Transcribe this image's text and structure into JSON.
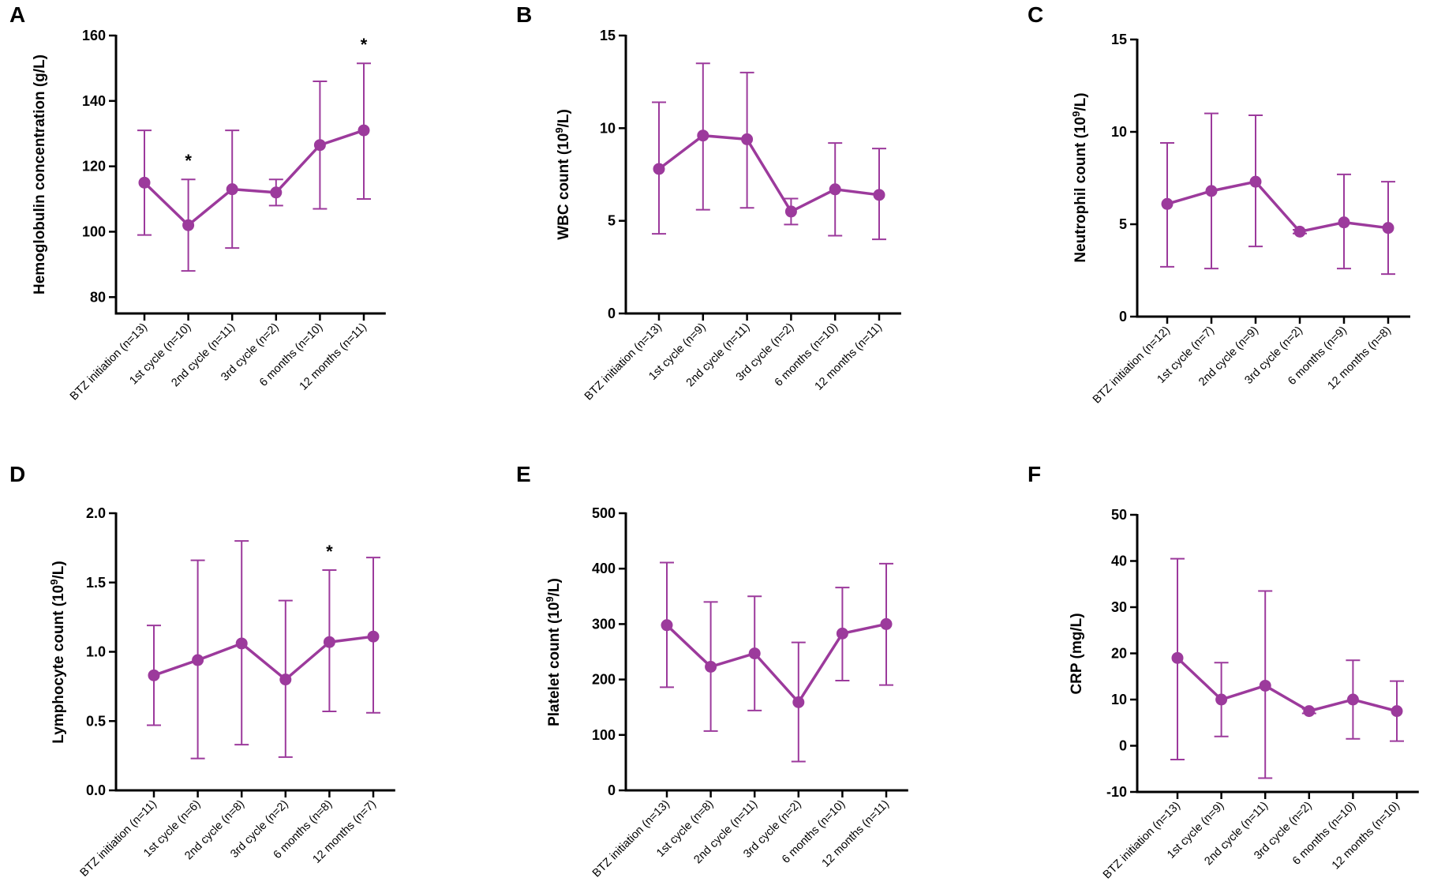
{
  "colors": {
    "series": "#9c3a9c",
    "axis": "#000000"
  },
  "chart_data": [
    {
      "panel": "A",
      "type": "line",
      "ylabel": "Hemoglobulin concentration (g/L)",
      "ylim": [
        75,
        160
      ],
      "yticks": [
        80,
        100,
        120,
        140,
        160
      ],
      "categories": [
        "BTZ initiation (n=13)",
        "1st cycle (n=10)",
        "2nd cycle (n=11)",
        "3rd cycle (n=2)",
        "6 months (n=10)",
        "12 months (n=11)"
      ],
      "values": [
        115,
        102,
        113,
        112,
        126.5,
        131
      ],
      "err_low": [
        99,
        88,
        95,
        108,
        107,
        110
      ],
      "err_high": [
        131,
        116,
        131,
        116,
        146,
        151.5
      ],
      "significance": [
        "",
        "*",
        "",
        "",
        "",
        "*"
      ]
    },
    {
      "panel": "B",
      "type": "line",
      "ylabel": "WBC count (10⁹/L)",
      "ylim": [
        0,
        15
      ],
      "yticks": [
        0,
        5,
        10,
        15
      ],
      "categories": [
        "BTZ initiation (n=13)",
        "1st cycle (n=9)",
        "2nd cycle (n=11)",
        "3rd cycle (n=2)",
        "6 months (n=10)",
        "12 months (n=11)"
      ],
      "values": [
        7.8,
        9.6,
        9.4,
        5.5,
        6.7,
        6.4
      ],
      "err_low": [
        4.3,
        5.6,
        5.7,
        4.8,
        4.2,
        4.0
      ],
      "err_high": [
        11.4,
        13.5,
        13.0,
        6.2,
        9.2,
        8.9
      ],
      "significance": [
        "",
        "",
        "",
        "",
        "",
        ""
      ]
    },
    {
      "panel": "C",
      "type": "line",
      "ylabel": "Neutrophil count (10⁹/L)",
      "ylim": [
        0,
        15
      ],
      "yticks": [
        0,
        5,
        10,
        15
      ],
      "categories": [
        "BTZ initiation (n=12)",
        "1st cycle (n=7)",
        "2nd cycle (n=9)",
        "3rd cycle (n=2)",
        "6 months (n=9)",
        "12 months (n=8)"
      ],
      "values": [
        6.1,
        6.8,
        7.3,
        4.6,
        5.1,
        4.8
      ],
      "err_low": [
        2.7,
        2.6,
        3.8,
        4.5,
        2.6,
        2.3
      ],
      "err_high": [
        9.4,
        11.0,
        10.9,
        4.7,
        7.7,
        7.3
      ],
      "significance": [
        "",
        "",
        "",
        "",
        "",
        ""
      ]
    },
    {
      "panel": "D",
      "type": "line",
      "ylabel": "Lymphocyte count (10⁹/L)",
      "ylim": [
        0,
        2
      ],
      "yticks": [
        "0.0",
        "0.5",
        "1.0",
        "1.5",
        "2.0"
      ],
      "categories": [
        "BTZ initiation (n=11)",
        "1st cycle (n=6)",
        "2nd cycle (n=8)",
        "3rd cycle (n=2)",
        "6 months (n=8)",
        "12 months (n=7)"
      ],
      "values": [
        0.83,
        0.94,
        1.06,
        0.8,
        1.07,
        1.11
      ],
      "err_low": [
        0.47,
        0.23,
        0.33,
        0.24,
        0.57,
        0.56
      ],
      "err_high": [
        1.19,
        1.66,
        1.8,
        1.37,
        1.59,
        1.68
      ],
      "significance": [
        "",
        "",
        "",
        "",
        "*",
        ""
      ]
    },
    {
      "panel": "E",
      "type": "line",
      "ylabel": "Platelet count (10⁹/L)",
      "ylim": [
        0,
        500
      ],
      "yticks": [
        0,
        100,
        200,
        300,
        400,
        500
      ],
      "categories": [
        "BTZ initiation (n=13)",
        "1st cycle (n=8)",
        "2nd cycle (n=11)",
        "3rd cycle (n=2)",
        "6 months (n=10)",
        "12 months (n=11)"
      ],
      "values": [
        298,
        223,
        247,
        159,
        283,
        300
      ],
      "err_low": [
        186,
        107,
        144,
        52,
        198,
        190
      ],
      "err_high": [
        411,
        340,
        350,
        267,
        366,
        409
      ],
      "significance": [
        "",
        "",
        "",
        "",
        "",
        ""
      ]
    },
    {
      "panel": "F",
      "type": "line",
      "ylabel": "CRP (mg/L)",
      "ylim": [
        -10,
        50
      ],
      "yticks": [
        -10,
        0,
        10,
        20,
        30,
        40,
        50
      ],
      "categories": [
        "BTZ initiation (n=13)",
        "1st cycle (n=9)",
        "2nd cycle (n=11)",
        "3rd cycle (n=2)",
        "6 months (n=10)",
        "12 months (n=10)"
      ],
      "values": [
        19,
        10,
        13,
        7.5,
        10,
        7.5
      ],
      "err_low": [
        -3,
        2,
        -7,
        7,
        1.5,
        1
      ],
      "err_high": [
        40.5,
        18,
        33.5,
        8,
        18.5,
        14
      ],
      "significance": [
        "",
        "",
        "",
        "",
        "",
        ""
      ]
    }
  ]
}
